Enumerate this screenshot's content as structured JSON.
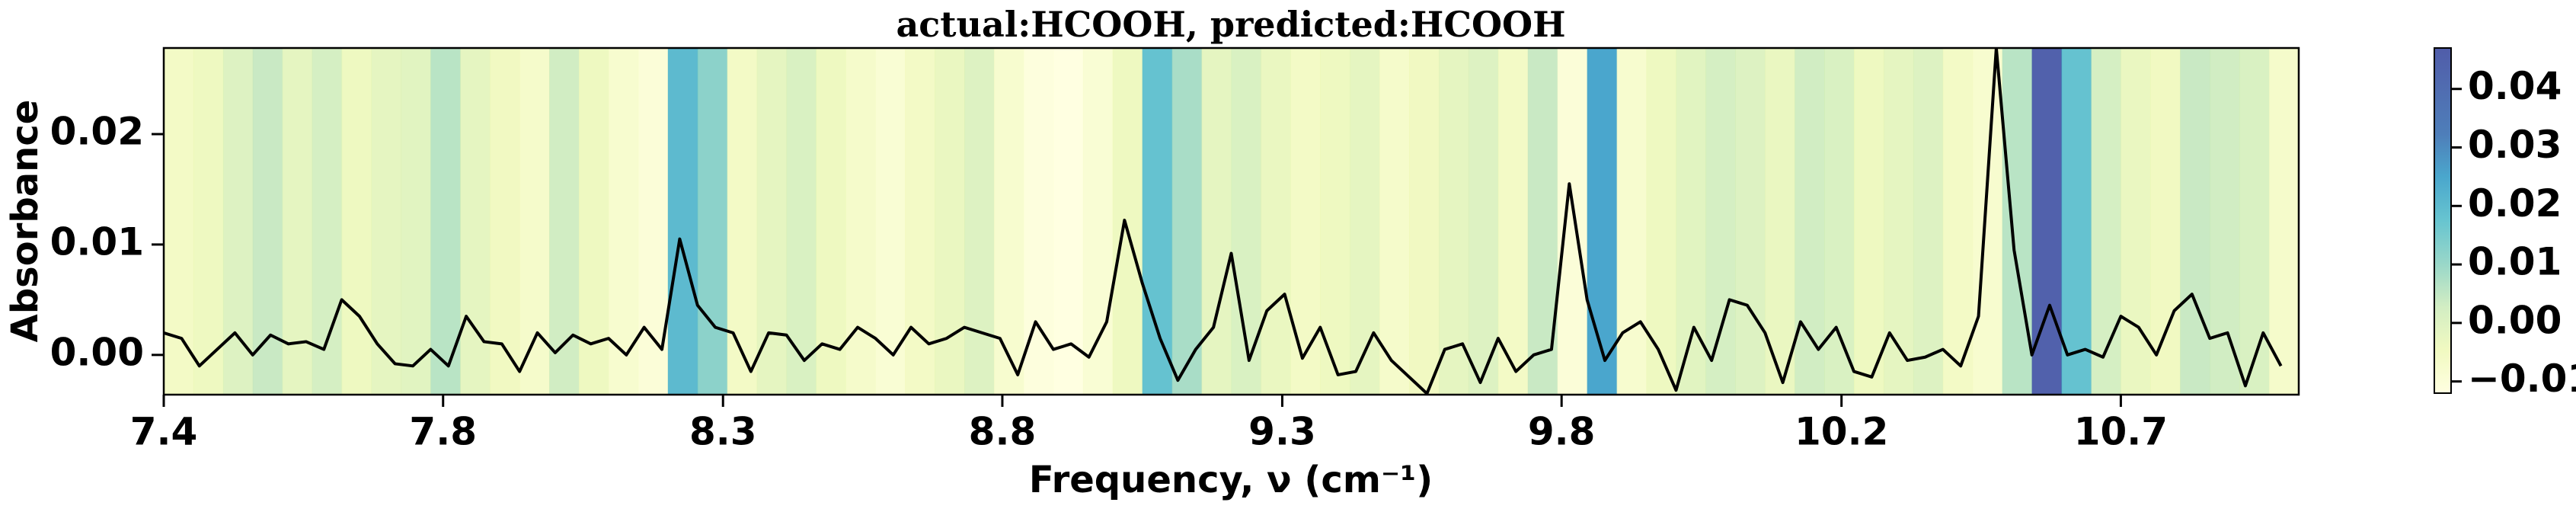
{
  "chart_data": {
    "type": "line",
    "title": "actual:HCOOH, predicted:HCOOH",
    "xlabel": "Frequency, ν (cm⁻¹)",
    "ylabel": "Absorbance",
    "color": "#000000",
    "x": [
      7.4,
      7.43,
      7.46,
      7.49,
      7.52,
      7.55,
      7.58,
      7.61,
      7.64,
      7.67,
      7.7,
      7.73,
      7.76,
      7.79,
      7.82,
      7.85,
      7.88,
      7.91,
      7.94,
      7.97,
      8.0,
      8.03,
      8.06,
      8.09,
      8.12,
      8.15,
      8.18,
      8.21,
      8.24,
      8.27,
      8.3,
      8.33,
      8.36,
      8.39,
      8.42,
      8.45,
      8.48,
      8.51,
      8.54,
      8.57,
      8.6,
      8.63,
      8.66,
      8.69,
      8.72,
      8.75,
      8.78,
      8.81,
      8.84,
      8.87,
      8.9,
      8.93,
      8.96,
      8.99,
      9.02,
      9.05,
      9.08,
      9.11,
      9.14,
      9.17,
      9.2,
      9.23,
      9.26,
      9.29,
      9.32,
      9.35,
      9.38,
      9.41,
      9.44,
      9.47,
      9.5,
      9.53,
      9.56,
      9.59,
      9.62,
      9.65,
      9.68,
      9.71,
      9.74,
      9.77,
      9.8,
      9.83,
      9.86,
      9.89,
      9.92,
      9.95,
      9.98,
      10.01,
      10.04,
      10.07,
      10.1,
      10.13,
      10.16,
      10.19,
      10.22,
      10.25,
      10.28,
      10.31,
      10.34,
      10.37,
      10.4,
      10.43,
      10.46,
      10.49,
      10.52,
      10.55,
      10.58,
      10.61,
      10.64,
      10.67,
      10.7,
      10.73,
      10.76,
      10.79,
      10.82,
      10.85,
      10.88,
      10.91,
      10.94,
      10.97
    ],
    "values": [
      0.002,
      0.0015,
      -0.001,
      0.0005,
      0.002,
      0,
      0.0018,
      0.001,
      0.0012,
      0.0005,
      0.005,
      0.0035,
      0.001,
      -0.0008,
      -0.001,
      0.0005,
      -0.001,
      0.0035,
      0.0012,
      0.001,
      -0.0015,
      0.002,
      0.0002,
      0.0018,
      0.001,
      0.0015,
      0,
      0.0025,
      0.0005,
      0.0105,
      0.0045,
      0.0025,
      0.002,
      -0.0015,
      0.002,
      0.0018,
      -0.0005,
      0.001,
      0.0005,
      0.0025,
      0.0015,
      0,
      0.0025,
      0.001,
      0.0015,
      0.0025,
      0.002,
      0.0015,
      -0.0018,
      0.003,
      0.0005,
      0.001,
      -0.0002,
      0.003,
      0.0122,
      0.0065,
      0.0015,
      -0.0023,
      0.0005,
      0.0025,
      0.0092,
      -0.0005,
      0.004,
      0.0055,
      -0.0003,
      0.0025,
      -0.0018,
      -0.0015,
      0.002,
      -0.0005,
      -0.002,
      -0.0035,
      0.0005,
      0.001,
      -0.0025,
      0.0015,
      -0.0015,
      0,
      0.0005,
      0.0155,
      0.005,
      -0.0005,
      0.002,
      0.003,
      0.0005,
      -0.0032,
      0.0025,
      -0.0005,
      0.005,
      0.0045,
      0.002,
      -0.0025,
      0.003,
      0.0005,
      0.0025,
      -0.0015,
      -0.002,
      0.002,
      -0.0005,
      -0.0002,
      0.0005,
      -0.001,
      0.0035,
      0.0278,
      0.0095,
      0,
      0.0045,
      0,
      0.0005,
      -0.0002,
      0.0035,
      0.0025,
      0,
      0.004,
      0.0055,
      0.0015,
      0.002,
      -0.0028,
      0.002,
      -0.001
    ],
    "xlim": [
      7.4,
      11.0
    ],
    "xticks": [
      {
        "value": 7.4,
        "label": "7.4"
      },
      {
        "value": 7.871,
        "label": "7.8"
      },
      {
        "value": 8.343,
        "label": "8.3"
      },
      {
        "value": 8.814,
        "label": "8.8"
      },
      {
        "value": 9.286,
        "label": "9.3"
      },
      {
        "value": 9.757,
        "label": "9.8"
      },
      {
        "value": 10.229,
        "label": "10.2"
      },
      {
        "value": 10.7,
        "label": "10.7"
      }
    ],
    "ylim": [
      -0.0036,
      0.0278
    ],
    "yticks": [
      {
        "value": 0,
        "label": "0.00"
      },
      {
        "value": 0.01,
        "label": "0.01"
      },
      {
        "value": 0.02,
        "label": "0.02"
      }
    ],
    "background": {
      "bins": [
        7.4,
        7.45,
        7.5,
        7.55,
        7.6,
        7.65,
        7.7,
        7.75,
        7.8,
        7.85,
        7.9,
        7.95,
        8.0,
        8.05,
        8.1,
        8.15,
        8.2,
        8.25,
        8.3,
        8.35,
        8.4,
        8.45,
        8.5,
        8.55,
        8.6,
        8.65,
        8.7,
        8.75,
        8.8,
        8.85,
        8.9,
        8.95,
        9.0,
        9.05,
        9.1,
        9.15,
        9.2,
        9.25,
        9.3,
        9.35,
        9.4,
        9.45,
        9.5,
        9.55,
        9.6,
        9.65,
        9.7,
        9.75,
        9.8,
        9.85,
        9.9,
        9.95,
        10.0,
        10.05,
        10.1,
        10.15,
        10.2,
        10.25,
        10.3,
        10.35,
        10.4,
        10.45,
        10.5,
        10.55,
        10.6,
        10.65,
        10.7,
        10.75,
        10.8,
        10.85,
        10.9,
        10.95,
        11.0
      ],
      "values": [
        -0.006,
        -0.004,
        0,
        0.004,
        -0.002,
        0.002,
        -0.004,
        -0.002,
        -0.001,
        0.006,
        -0.002,
        -0.005,
        -0.007,
        0.003,
        -0.004,
        -0.008,
        -0.01,
        0.02,
        0.012,
        -0.006,
        -0.002,
        0.001,
        -0.004,
        -0.007,
        -0.009,
        -0.006,
        -0.003,
        0,
        -0.008,
        -0.011,
        -0.012,
        -0.009,
        -0.004,
        0.018,
        0.008,
        -0.002,
        0.001,
        -0.003,
        -0.006,
        -0.004,
        -0.002,
        -0.007,
        -0.005,
        -0.002,
        0,
        -0.006,
        0.004,
        -0.01,
        0.025,
        -0.008,
        -0.004,
        -0.001,
        0.002,
        0,
        -0.003,
        0.003,
        0.001,
        -0.004,
        -0.002,
        0,
        -0.006,
        -0.008,
        0.006,
        0.045,
        0.018,
        0.002,
        -0.003,
        -0.005,
        0.004,
        0.003,
        0.001,
        -0.007
      ],
      "clim": [
        -0.012,
        0.047
      ],
      "cticks": [
        {
          "value": -0.01,
          "label": "−0.01"
        },
        {
          "value": 0,
          "label": "0.00"
        },
        {
          "value": 0.01,
          "label": "0.01"
        },
        {
          "value": 0.02,
          "label": "0.02"
        },
        {
          "value": 0.03,
          "label": "0.03"
        },
        {
          "value": 0.04,
          "label": "0.04"
        }
      ]
    }
  }
}
